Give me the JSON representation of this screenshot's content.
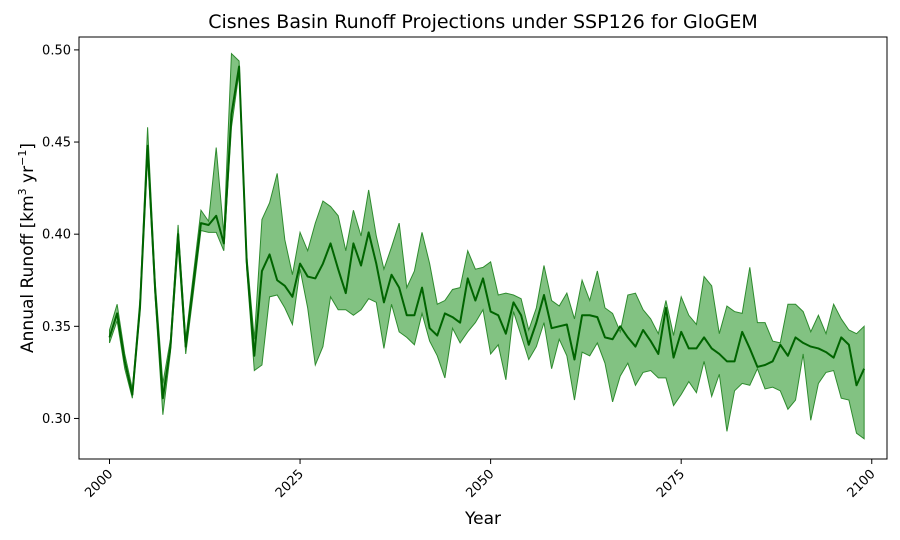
{
  "chart_data": {
    "type": "line",
    "title": "Cisnes Basin Runoff Projections under SSP126 for GloGEM",
    "xlabel": "Year",
    "ylabel_main": "Annual Runoff [km",
    "ylabel_sup1": "3",
    "ylabel_mid": " yr",
    "ylabel_sup2": "−1",
    "ylabel_end": "]",
    "xlim": [
      1996,
      2102
    ],
    "ylim": [
      0.278,
      0.507
    ],
    "xticks": [
      2000,
      2025,
      2050,
      2075,
      2100
    ],
    "xtick_labels": [
      "2000",
      "2025",
      "2050",
      "2075",
      "2100"
    ],
    "yticks": [
      0.3,
      0.35,
      0.4,
      0.45,
      0.5
    ],
    "ytick_labels": [
      "0.30",
      "0.35",
      "0.40",
      "0.45",
      "0.50"
    ],
    "colors": {
      "line": "#006400",
      "band": "#2e9a2e",
      "band_edge": "#2e8b2e"
    },
    "x": [
      2000,
      2001,
      2002,
      2003,
      2004,
      2005,
      2006,
      2007,
      2008,
      2009,
      2010,
      2011,
      2012,
      2013,
      2014,
      2015,
      2016,
      2017,
      2018,
      2019,
      2020,
      2021,
      2022,
      2023,
      2024,
      2025,
      2026,
      2027,
      2028,
      2029,
      2030,
      2031,
      2032,
      2033,
      2034,
      2035,
      2036,
      2037,
      2038,
      2039,
      2040,
      2041,
      2042,
      2043,
      2044,
      2045,
      2046,
      2047,
      2048,
      2049,
      2050,
      2051,
      2052,
      2053,
      2054,
      2055,
      2056,
      2057,
      2058,
      2059,
      2060,
      2061,
      2062,
      2063,
      2064,
      2065,
      2066,
      2067,
      2068,
      2069,
      2070,
      2071,
      2072,
      2073,
      2074,
      2075,
      2076,
      2077,
      2078,
      2079,
      2080,
      2081,
      2082,
      2083,
      2084,
      2085,
      2086,
      2087,
      2088,
      2089,
      2090,
      2091,
      2092,
      2093,
      2094,
      2095,
      2096,
      2097,
      2098,
      2099
    ],
    "series": [
      {
        "name": "mean",
        "values": [
          0.344,
          0.357,
          0.331,
          0.313,
          0.36,
          0.448,
          0.369,
          0.311,
          0.339,
          0.4,
          0.339,
          0.373,
          0.406,
          0.405,
          0.41,
          0.395,
          0.465,
          0.491,
          0.385,
          0.334,
          0.38,
          0.389,
          0.375,
          0.372,
          0.366,
          0.384,
          0.377,
          0.376,
          0.384,
          0.395,
          0.381,
          0.368,
          0.395,
          0.383,
          0.401,
          0.384,
          0.363,
          0.378,
          0.371,
          0.356,
          0.356,
          0.371,
          0.349,
          0.345,
          0.357,
          0.355,
          0.352,
          0.376,
          0.364,
          0.376,
          0.358,
          0.356,
          0.346,
          0.363,
          0.356,
          0.34,
          0.352,
          0.367,
          0.349,
          0.35,
          0.351,
          0.332,
          0.356,
          0.356,
          0.355,
          0.344,
          0.343,
          0.35,
          0.344,
          0.339,
          0.348,
          0.342,
          0.335,
          0.36,
          0.333,
          0.347,
          0.338,
          0.338,
          0.344,
          0.338,
          0.335,
          0.331,
          0.331,
          0.347,
          0.338,
          0.328,
          0.329,
          0.331,
          0.34,
          0.334,
          0.344,
          0.341,
          0.339,
          0.338,
          0.336,
          0.333,
          0.344,
          0.34,
          0.318,
          0.327
        ]
      },
      {
        "name": "upper",
        "values": [
          0.348,
          0.362,
          0.335,
          0.316,
          0.365,
          0.458,
          0.374,
          0.319,
          0.343,
          0.405,
          0.343,
          0.378,
          0.413,
          0.407,
          0.447,
          0.4,
          0.498,
          0.494,
          0.389,
          0.343,
          0.408,
          0.417,
          0.433,
          0.397,
          0.378,
          0.401,
          0.391,
          0.406,
          0.418,
          0.415,
          0.41,
          0.391,
          0.413,
          0.399,
          0.424,
          0.399,
          0.381,
          0.393,
          0.406,
          0.371,
          0.38,
          0.401,
          0.384,
          0.362,
          0.364,
          0.37,
          0.371,
          0.391,
          0.381,
          0.382,
          0.385,
          0.367,
          0.368,
          0.367,
          0.365,
          0.348,
          0.36,
          0.383,
          0.364,
          0.361,
          0.368,
          0.354,
          0.375,
          0.364,
          0.38,
          0.36,
          0.357,
          0.347,
          0.367,
          0.368,
          0.359,
          0.354,
          0.346,
          0.364,
          0.345,
          0.366,
          0.356,
          0.351,
          0.377,
          0.372,
          0.346,
          0.361,
          0.358,
          0.357,
          0.382,
          0.352,
          0.352,
          0.342,
          0.341,
          0.362,
          0.362,
          0.358,
          0.347,
          0.356,
          0.346,
          0.362,
          0.354,
          0.348,
          0.346,
          0.35
        ]
      },
      {
        "name": "lower",
        "values": [
          0.341,
          0.353,
          0.327,
          0.311,
          0.358,
          0.443,
          0.365,
          0.302,
          0.336,
          0.394,
          0.335,
          0.368,
          0.402,
          0.401,
          0.401,
          0.391,
          0.458,
          0.488,
          0.381,
          0.326,
          0.329,
          0.366,
          0.367,
          0.36,
          0.351,
          0.381,
          0.36,
          0.329,
          0.339,
          0.366,
          0.359,
          0.359,
          0.356,
          0.359,
          0.365,
          0.363,
          0.338,
          0.362,
          0.347,
          0.344,
          0.34,
          0.357,
          0.342,
          0.334,
          0.322,
          0.349,
          0.341,
          0.347,
          0.352,
          0.359,
          0.335,
          0.34,
          0.321,
          0.358,
          0.345,
          0.332,
          0.339,
          0.352,
          0.327,
          0.343,
          0.334,
          0.31,
          0.336,
          0.334,
          0.341,
          0.33,
          0.309,
          0.323,
          0.33,
          0.318,
          0.325,
          0.326,
          0.322,
          0.322,
          0.307,
          0.313,
          0.32,
          0.314,
          0.331,
          0.312,
          0.324,
          0.293,
          0.315,
          0.319,
          0.318,
          0.327,
          0.316,
          0.317,
          0.315,
          0.305,
          0.31,
          0.335,
          0.299,
          0.319,
          0.325,
          0.326,
          0.311,
          0.31,
          0.292,
          0.289
        ]
      }
    ]
  }
}
